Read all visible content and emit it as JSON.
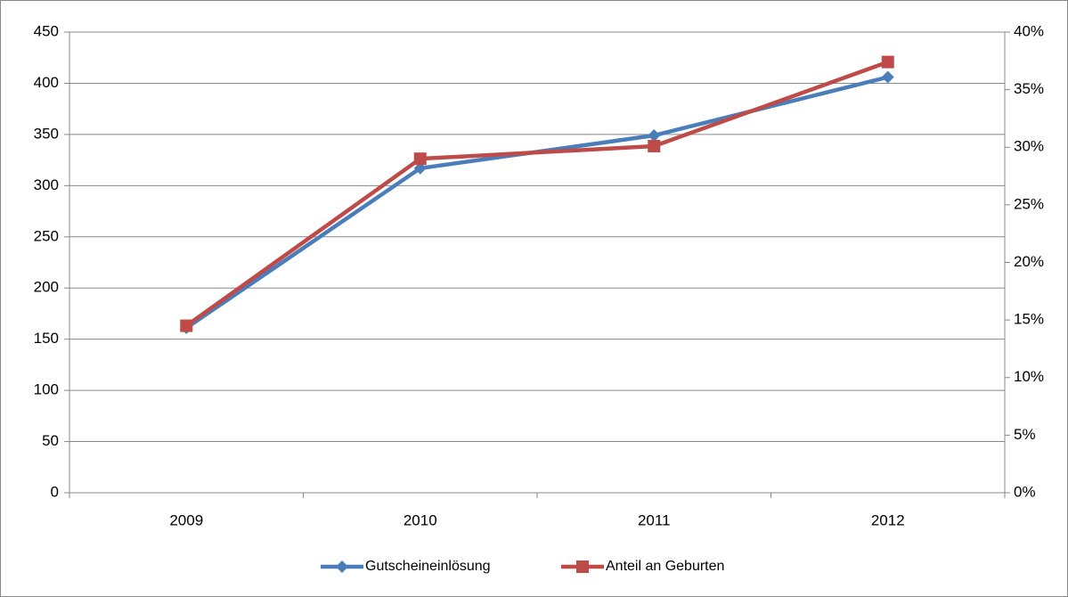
{
  "chart_data": {
    "type": "line",
    "categories": [
      "2009",
      "2010",
      "2011",
      "2012"
    ],
    "series": [
      {
        "name": "Gutscheineinlösung",
        "color": "#4a7ebb",
        "marker": "diamond",
        "values": [
          161,
          317,
          349,
          406
        ]
      },
      {
        "name": "Anteil an Geburten",
        "color": "#be4b48",
        "marker": "square",
        "axis": "y2",
        "values": [
          14.5,
          29.0,
          30.1,
          37.4
        ]
      }
    ],
    "ylim": [
      0,
      450
    ],
    "yticks": [
      0,
      50,
      100,
      150,
      200,
      250,
      300,
      350,
      400,
      450
    ],
    "y2lim": [
      0,
      40
    ],
    "y2ticks": [
      {
        "value": 0,
        "label": "0%"
      },
      {
        "value": 5,
        "label": "5%"
      },
      {
        "value": 10,
        "label": "10%"
      },
      {
        "value": 15,
        "label": "15%"
      },
      {
        "value": 20,
        "label": "20%"
      },
      {
        "value": 25,
        "label": "25%"
      },
      {
        "value": 30,
        "label": "30%"
      },
      {
        "value": 35,
        "label": "35%"
      },
      {
        "value": 40,
        "label": "40%"
      }
    ],
    "grid": true,
    "legend": "bottom"
  }
}
